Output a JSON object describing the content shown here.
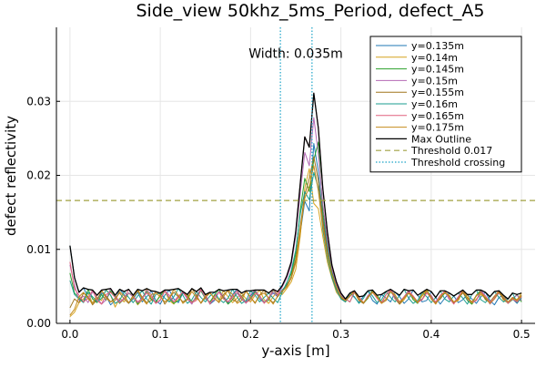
{
  "chart_data": {
    "type": "line",
    "title": "Side_view 50khz_5ms_Period, defect_A5",
    "xlabel": "y-axis [m]",
    "ylabel": "defect reflectivity",
    "xlim": [
      -0.015,
      0.515
    ],
    "ylim": [
      0,
      0.04
    ],
    "xticks": [
      0.0,
      0.1,
      0.2,
      0.3,
      0.4,
      0.5
    ],
    "xtick_labels": [
      "0.0",
      "0.1",
      "0.2",
      "0.3",
      "0.4",
      "0.5"
    ],
    "yticks": [
      0.0,
      0.01,
      0.02,
      0.03
    ],
    "ytick_labels": [
      "0.00",
      "0.01",
      "0.02",
      "0.03"
    ],
    "grid": true,
    "legend_position": "top-right",
    "annotation": {
      "text": "Width: 0.035m",
      "x": 0.25,
      "y": 0.0365
    },
    "threshold": {
      "name": "Threshold 0.017",
      "value": 0.0166,
      "color": "#a0a040"
    },
    "crossings": {
      "name": "Threshold crossing",
      "x": [
        0.233,
        0.268
      ],
      "color": "#1aa3c8"
    },
    "outline": {
      "name": "Max Outline",
      "color": "#000000"
    },
    "x_start": 0.0,
    "x_step": 0.005,
    "series": [
      {
        "name": "y=0.135m",
        "color": "#1f77b4",
        "values": [
          0.0105,
          0.0062,
          0.0042,
          0.0048,
          0.0035,
          0.0028,
          0.0032,
          0.0041,
          0.0037,
          0.0025,
          0.0031,
          0.0046,
          0.0039,
          0.0027,
          0.0033,
          0.0042,
          0.0029,
          0.0036,
          0.0044,
          0.0031,
          0.0026,
          0.0038,
          0.0045,
          0.0033,
          0.0028,
          0.0041,
          0.0036,
          0.0029,
          0.0034,
          0.0047,
          0.0038,
          0.0026,
          0.0031,
          0.0043,
          0.0035,
          0.0027,
          0.0039,
          0.0046,
          0.0032,
          0.0029,
          0.0037,
          0.0044,
          0.0033,
          0.0028,
          0.0035,
          0.0041,
          0.0036,
          0.0045,
          0.0052,
          0.0061,
          0.0084,
          0.0122,
          0.0165,
          0.0152,
          0.0243,
          0.0205,
          0.0143,
          0.0102,
          0.0071,
          0.0048,
          0.0036,
          0.0032,
          0.0041,
          0.0035,
          0.0028,
          0.0037,
          0.0044,
          0.0031,
          0.0026,
          0.0039,
          0.0034,
          0.0029,
          0.0042,
          0.0036,
          0.0027,
          0.0033,
          0.0045,
          0.0038,
          0.0029,
          0.0031,
          0.0043,
          0.0035,
          0.0026,
          0.0034,
          0.0041,
          0.0037,
          0.0028,
          0.0032,
          0.0039,
          0.0033,
          0.0027,
          0.0036,
          0.0042,
          0.0031,
          0.0025,
          0.0035,
          0.0038,
          0.0029,
          0.0033,
          0.0027,
          0.0036
        ]
      },
      {
        "name": "y=0.14m",
        "color": "#d6a21f",
        "values": [
          0.0009,
          0.0015,
          0.0028,
          0.0033,
          0.0041,
          0.0027,
          0.0035,
          0.0031,
          0.0046,
          0.0038,
          0.0022,
          0.0034,
          0.0029,
          0.0041,
          0.0036,
          0.0025,
          0.0032,
          0.0047,
          0.0033,
          0.0028,
          0.0039,
          0.0044,
          0.0031,
          0.0026,
          0.0035,
          0.0042,
          0.0037,
          0.0029,
          0.0033,
          0.0048,
          0.0035,
          0.0027,
          0.0039,
          0.0031,
          0.0044,
          0.0036,
          0.0028,
          0.0034,
          0.0041,
          0.0033,
          0.0029,
          0.0038,
          0.0045,
          0.0032,
          0.0027,
          0.0036,
          0.0043,
          0.0039,
          0.0047,
          0.0056,
          0.0073,
          0.0118,
          0.0183,
          0.0209,
          0.0162,
          0.0155,
          0.0117,
          0.0083,
          0.0061,
          0.0042,
          0.0034,
          0.0029,
          0.0038,
          0.0043,
          0.0031,
          0.0027,
          0.0036,
          0.0042,
          0.0035,
          0.0028,
          0.0033,
          0.0045,
          0.0039,
          0.0026,
          0.0032,
          0.0041,
          0.0034,
          0.0029,
          0.0037,
          0.0044,
          0.0033,
          0.0027,
          0.0035,
          0.0042,
          0.0036,
          0.0028,
          0.0031,
          0.0043,
          0.0038,
          0.0026,
          0.0033,
          0.0039,
          0.0034,
          0.0029,
          0.0037,
          0.0044,
          0.0031,
          0.0028,
          0.0035,
          0.0032,
          0.0041
        ]
      },
      {
        "name": "y=0.145m",
        "color": "#2ca02c",
        "values": [
          0.0068,
          0.0041,
          0.0035,
          0.0029,
          0.0046,
          0.0033,
          0.0028,
          0.0039,
          0.0031,
          0.0044,
          0.0036,
          0.0027,
          0.0033,
          0.0041,
          0.0038,
          0.0026,
          0.0035,
          0.0043,
          0.0032,
          0.0029,
          0.0037,
          0.0045,
          0.0034,
          0.0027,
          0.0031,
          0.0042,
          0.0039,
          0.0028,
          0.0036,
          0.0044,
          0.0033,
          0.0029,
          0.0038,
          0.0046,
          0.0035,
          0.0026,
          0.0032,
          0.0041,
          0.0037,
          0.0028,
          0.0034,
          0.0043,
          0.0036,
          0.0029,
          0.0031,
          0.0045,
          0.0038,
          0.0042,
          0.0055,
          0.0067,
          0.0094,
          0.0153,
          0.0196,
          0.0178,
          0.0221,
          0.0245,
          0.0151,
          0.0109,
          0.0068,
          0.0051,
          0.0037,
          0.0033,
          0.0029,
          0.0042,
          0.0036,
          0.0027,
          0.0034,
          0.0045,
          0.0038,
          0.0029,
          0.0031,
          0.0043,
          0.0035,
          0.0028,
          0.0036,
          0.0044,
          0.0032,
          0.0027,
          0.0039,
          0.0046,
          0.0034,
          0.0029,
          0.0033,
          0.0041,
          0.0037,
          0.0028,
          0.0035,
          0.0042,
          0.0031,
          0.0026,
          0.0038,
          0.0045,
          0.0033,
          0.0029,
          0.0036,
          0.0041,
          0.0034,
          0.0027,
          0.0032,
          0.0039,
          0.0029
        ]
      },
      {
        "name": "y=0.15m",
        "color": "#b469b4",
        "values": [
          0.0079,
          0.0052,
          0.0031,
          0.0037,
          0.0028,
          0.0043,
          0.0035,
          0.0026,
          0.0032,
          0.0047,
          0.0038,
          0.0029,
          0.0034,
          0.0041,
          0.0036,
          0.0028,
          0.0033,
          0.0045,
          0.0039,
          0.0027,
          0.0031,
          0.0044,
          0.0035,
          0.0029,
          0.0037,
          0.0042,
          0.0033,
          0.0026,
          0.0038,
          0.0046,
          0.0034,
          0.0028,
          0.0032,
          0.0043,
          0.0037,
          0.0029,
          0.0035,
          0.0041,
          0.0033,
          0.0027,
          0.0039,
          0.0045,
          0.0036,
          0.0028,
          0.0034,
          0.0042,
          0.0037,
          0.0049,
          0.0061,
          0.0079,
          0.0118,
          0.0176,
          0.0231,
          0.0213,
          0.0278,
          0.0229,
          0.0161,
          0.0113,
          0.0074,
          0.0053,
          0.0039,
          0.0031,
          0.0036,
          0.0044,
          0.0033,
          0.0027,
          0.0038,
          0.0042,
          0.0035,
          0.0029,
          0.0031,
          0.0046,
          0.0037,
          0.0028,
          0.0034,
          0.0043,
          0.0036,
          0.0029,
          0.0033,
          0.0041,
          0.0038,
          0.0027,
          0.0035,
          0.0044,
          0.0032,
          0.0028,
          0.0036,
          0.0042,
          0.0034,
          0.0029,
          0.0031,
          0.0045,
          0.0037,
          0.0026,
          0.0033,
          0.0041,
          0.0035,
          0.0028,
          0.0034,
          0.0038,
          0.0031
        ]
      },
      {
        "name": "y=0.155m",
        "color": "#a0741c",
        "values": [
          0.0021,
          0.0033,
          0.0028,
          0.0041,
          0.0036,
          0.0025,
          0.0032,
          0.0044,
          0.0037,
          0.0029,
          0.0034,
          0.0041,
          0.0033,
          0.0027,
          0.0038,
          0.0046,
          0.0035,
          0.0028,
          0.0031,
          0.0043,
          0.0039,
          0.0026,
          0.0034,
          0.0042,
          0.0036,
          0.0029,
          0.0033,
          0.0047,
          0.0038,
          0.0027,
          0.0035,
          0.0041,
          0.0034,
          0.0028,
          0.0039,
          0.0044,
          0.0032,
          0.0029,
          0.0036,
          0.0043,
          0.0035,
          0.0027,
          0.0038,
          0.0045,
          0.0033,
          0.0028,
          0.0036,
          0.0044,
          0.0051,
          0.0063,
          0.0087,
          0.0131,
          0.0174,
          0.0196,
          0.0225,
          0.0193,
          0.0138,
          0.0096,
          0.0064,
          0.0047,
          0.0035,
          0.0029,
          0.0038,
          0.0042,
          0.0031,
          0.0027,
          0.0036,
          0.0043,
          0.0034,
          0.0028,
          0.0039,
          0.0045,
          0.0033,
          0.0026,
          0.0035,
          0.0041,
          0.0037,
          0.0029,
          0.0032,
          0.0044,
          0.0036,
          0.0028,
          0.0033,
          0.0042,
          0.0038,
          0.0027,
          0.0034,
          0.0041,
          0.0035,
          0.0029,
          0.0037,
          0.0043,
          0.0032,
          0.0028,
          0.0036,
          0.0042,
          0.0033,
          0.0029,
          0.0035,
          0.0031,
          0.0038
        ]
      },
      {
        "name": "y=0.16m",
        "color": "#1a9e8f",
        "values": [
          0.0058,
          0.0039,
          0.0033,
          0.0028,
          0.0042,
          0.0036,
          0.0029,
          0.0034,
          0.0045,
          0.0038,
          0.0027,
          0.0031,
          0.0043,
          0.0035,
          0.0028,
          0.0037,
          0.0044,
          0.0033,
          0.0026,
          0.0039,
          0.0041,
          0.0034,
          0.0029,
          0.0036,
          0.0047,
          0.0038,
          0.0027,
          0.0032,
          0.0043,
          0.0035,
          0.0029,
          0.0037,
          0.0042,
          0.0033,
          0.0028,
          0.0034,
          0.0046,
          0.0036,
          0.0027,
          0.0031,
          0.0044,
          0.0038,
          0.0029,
          0.0035,
          0.0041,
          0.0034,
          0.0028,
          0.0042,
          0.0054,
          0.0071,
          0.0099,
          0.0148,
          0.0178,
          0.0167,
          0.0204,
          0.0183,
          0.0126,
          0.0089,
          0.0062,
          0.0045,
          0.0033,
          0.0029,
          0.0041,
          0.0036,
          0.0027,
          0.0034,
          0.0044,
          0.0037,
          0.0028,
          0.0032,
          0.0043,
          0.0035,
          0.0029,
          0.0038,
          0.0046,
          0.0034,
          0.0027,
          0.0031,
          0.0042,
          0.0036,
          0.0028,
          0.0035,
          0.0044,
          0.0033,
          0.0029,
          0.0037,
          0.0041,
          0.0034,
          0.0026,
          0.0039,
          0.0045,
          0.0032,
          0.0028,
          0.0036,
          0.0043,
          0.0035,
          0.0029,
          0.0033,
          0.0041,
          0.0028,
          0.0034
        ]
      },
      {
        "name": "y=0.165m",
        "color": "#e0607e",
        "values": [
          0.0083,
          0.0047,
          0.0038,
          0.0029,
          0.0034,
          0.0045,
          0.0031,
          0.0026,
          0.0039,
          0.0042,
          0.0035,
          0.0028,
          0.0033,
          0.0046,
          0.0037,
          0.0029,
          0.0034,
          0.0041,
          0.0036,
          0.0027,
          0.0032,
          0.0044,
          0.0038,
          0.0029,
          0.0035,
          0.0043,
          0.0034,
          0.0028,
          0.0031,
          0.0045,
          0.0039,
          0.0026,
          0.0036,
          0.0042,
          0.0033,
          0.0029,
          0.0037,
          0.0044,
          0.0035,
          0.0028,
          0.0032,
          0.0041,
          0.0038,
          0.0027,
          0.0034,
          0.0046,
          0.0039,
          0.0051,
          0.0064,
          0.0083,
          0.0124,
          0.0189,
          0.0252,
          0.0238,
          0.0311,
          0.0264,
          0.0182,
          0.0124,
          0.0079,
          0.0056,
          0.0041,
          0.0033,
          0.0029,
          0.0043,
          0.0036,
          0.0028,
          0.0035,
          0.0042,
          0.0034,
          0.0027,
          0.0039,
          0.0045,
          0.0033,
          0.0029,
          0.0036,
          0.0044,
          0.0037,
          0.0028,
          0.0032,
          0.0041,
          0.0035,
          0.0029,
          0.0038,
          0.0043,
          0.0034,
          0.0026,
          0.0036,
          0.0045,
          0.0033,
          0.0028,
          0.0031,
          0.0042,
          0.0037,
          0.0029,
          0.0035,
          0.0044,
          0.0036,
          0.0027,
          0.0033,
          0.0029,
          0.0036
        ]
      },
      {
        "name": "y=0.175m",
        "color": "#c48b1c",
        "values": [
          0.0011,
          0.0019,
          0.0036,
          0.0042,
          0.0033,
          0.0027,
          0.0038,
          0.0045,
          0.0034,
          0.0029,
          0.0031,
          0.0043,
          0.0037,
          0.0028,
          0.0035,
          0.0044,
          0.0033,
          0.0026,
          0.0039,
          0.0041,
          0.0036,
          0.0029,
          0.0034,
          0.0046,
          0.0038,
          0.0027,
          0.0032,
          0.0043,
          0.0035,
          0.0028,
          0.0037,
          0.0042,
          0.0033,
          0.0029,
          0.0036,
          0.0045,
          0.0039,
          0.0027,
          0.0031,
          0.0044,
          0.0035,
          0.0028,
          0.0038,
          0.0041,
          0.0034,
          0.0026,
          0.0037,
          0.0043,
          0.0049,
          0.0061,
          0.0082,
          0.0126,
          0.0169,
          0.0185,
          0.0213,
          0.0179,
          0.0131,
          0.0093,
          0.0066,
          0.0049,
          0.0036,
          0.0031,
          0.0037,
          0.0044,
          0.0033,
          0.0028,
          0.0035,
          0.0042,
          0.0036,
          0.0027,
          0.0031,
          0.0043,
          0.0038,
          0.0029,
          0.0034,
          0.0041,
          0.0035,
          0.0028,
          0.0039,
          0.0045,
          0.0033,
          0.0026,
          0.0036,
          0.0042,
          0.0037,
          0.0029,
          0.0032,
          0.0044,
          0.0034,
          0.0028,
          0.0038,
          0.0041,
          0.0035,
          0.0027,
          0.0033,
          0.0043,
          0.0036,
          0.0029,
          0.0034,
          0.0031,
          0.0037
        ]
      }
    ]
  }
}
